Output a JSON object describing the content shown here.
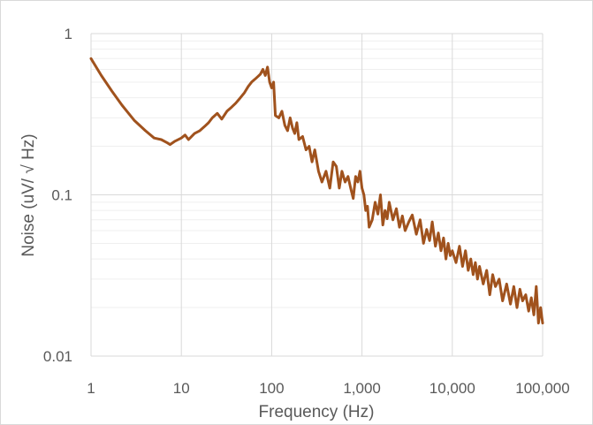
{
  "chart_data": {
    "type": "line",
    "title": "",
    "xlabel": "Frequency (Hz)",
    "ylabel": "Noise (uV/ √ Hz)",
    "xscale": "log",
    "yscale": "log",
    "xlim": [
      1,
      100000
    ],
    "ylim": [
      0.01,
      1
    ],
    "grid": true,
    "legend": "none",
    "x_ticks": [
      {
        "value": 1,
        "label": "1"
      },
      {
        "value": 10,
        "label": "10"
      },
      {
        "value": 100,
        "label": "100"
      },
      {
        "value": 1000,
        "label": "1,000"
      },
      {
        "value": 10000,
        "label": "10,000"
      },
      {
        "value": 100000,
        "label": "100,000"
      }
    ],
    "y_ticks": [
      {
        "value": 0.01,
        "label": "0.01"
      },
      {
        "value": 0.1,
        "label": "0.1"
      },
      {
        "value": 1,
        "label": "1"
      }
    ],
    "series": [
      {
        "color": "#A0521D",
        "x": [
          1,
          1.3,
          1.7,
          2.2,
          3,
          4,
          5,
          6,
          7,
          7.5,
          8.5,
          10,
          11,
          12,
          14,
          16,
          18,
          20,
          22,
          25,
          28,
          32,
          36,
          40,
          45,
          50,
          55,
          60,
          65,
          70,
          75,
          80,
          85,
          90,
          95,
          100,
          105,
          110,
          120,
          130,
          140,
          150,
          160,
          170,
          180,
          190,
          200,
          220,
          240,
          260,
          280,
          300,
          330,
          360,
          400,
          440,
          480,
          520,
          560,
          600,
          650,
          700,
          750,
          800,
          850,
          900,
          950,
          1000,
          1050,
          1100,
          1150,
          1200,
          1300,
          1400,
          1500,
          1600,
          1700,
          1800,
          1900,
          2000,
          2200,
          2400,
          2600,
          2800,
          3000,
          3300,
          3600,
          4000,
          4400,
          4800,
          5200,
          5600,
          6000,
          6500,
          7000,
          7500,
          8000,
          8500,
          9000,
          9500,
          10000,
          11000,
          12000,
          13000,
          14000,
          15000,
          16000,
          17000,
          18000,
          19000,
          20000,
          22000,
          24000,
          26000,
          28000,
          30000,
          33000,
          36000,
          40000,
          44000,
          48000,
          52000,
          56000,
          60000,
          65000,
          70000,
          75000,
          80000,
          85000,
          90000,
          95000,
          100000
        ],
        "y": [
          0.7,
          0.55,
          0.44,
          0.36,
          0.29,
          0.25,
          0.225,
          0.22,
          0.21,
          0.205,
          0.215,
          0.225,
          0.235,
          0.22,
          0.24,
          0.25,
          0.265,
          0.28,
          0.3,
          0.32,
          0.295,
          0.33,
          0.35,
          0.37,
          0.4,
          0.43,
          0.47,
          0.5,
          0.52,
          0.54,
          0.56,
          0.6,
          0.55,
          0.62,
          0.5,
          0.46,
          0.5,
          0.31,
          0.3,
          0.33,
          0.27,
          0.25,
          0.3,
          0.26,
          0.24,
          0.28,
          0.22,
          0.23,
          0.19,
          0.2,
          0.16,
          0.19,
          0.14,
          0.12,
          0.14,
          0.11,
          0.16,
          0.15,
          0.11,
          0.14,
          0.12,
          0.13,
          0.11,
          0.095,
          0.13,
          0.12,
          0.14,
          0.11,
          0.1,
          0.08,
          0.085,
          0.063,
          0.07,
          0.09,
          0.076,
          0.1,
          0.065,
          0.08,
          0.071,
          0.09,
          0.07,
          0.082,
          0.063,
          0.074,
          0.06,
          0.068,
          0.075,
          0.057,
          0.07,
          0.05,
          0.061,
          0.052,
          0.068,
          0.048,
          0.058,
          0.045,
          0.054,
          0.04,
          0.05,
          0.042,
          0.045,
          0.038,
          0.048,
          0.036,
          0.045,
          0.034,
          0.04,
          0.032,
          0.038,
          0.03,
          0.036,
          0.028,
          0.034,
          0.024,
          0.032,
          0.027,
          0.03,
          0.022,
          0.028,
          0.021,
          0.027,
          0.02,
          0.026,
          0.022,
          0.024,
          0.019,
          0.023,
          0.018,
          0.027,
          0.016,
          0.02,
          0.016
        ]
      }
    ]
  }
}
